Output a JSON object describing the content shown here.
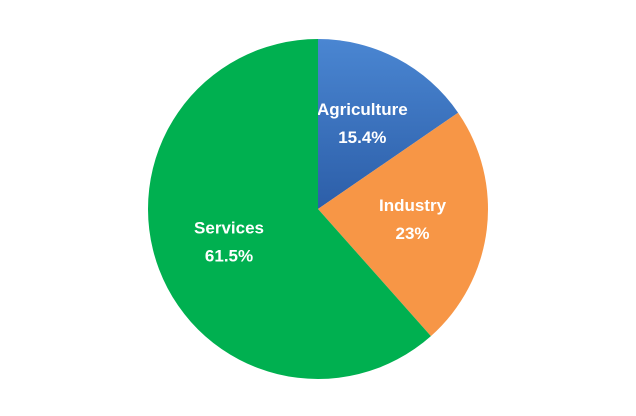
{
  "chart_data": {
    "type": "pie",
    "categories": [
      "Agriculture",
      "Industry",
      "Services"
    ],
    "values": [
      15.4,
      23,
      61.5
    ],
    "value_labels": [
      "15.4%",
      "23%",
      "61.5%"
    ],
    "colors": [
      "#3b70bd",
      "#f79646",
      "#00b050"
    ],
    "start_angle": 0,
    "direction": "clockwise"
  }
}
